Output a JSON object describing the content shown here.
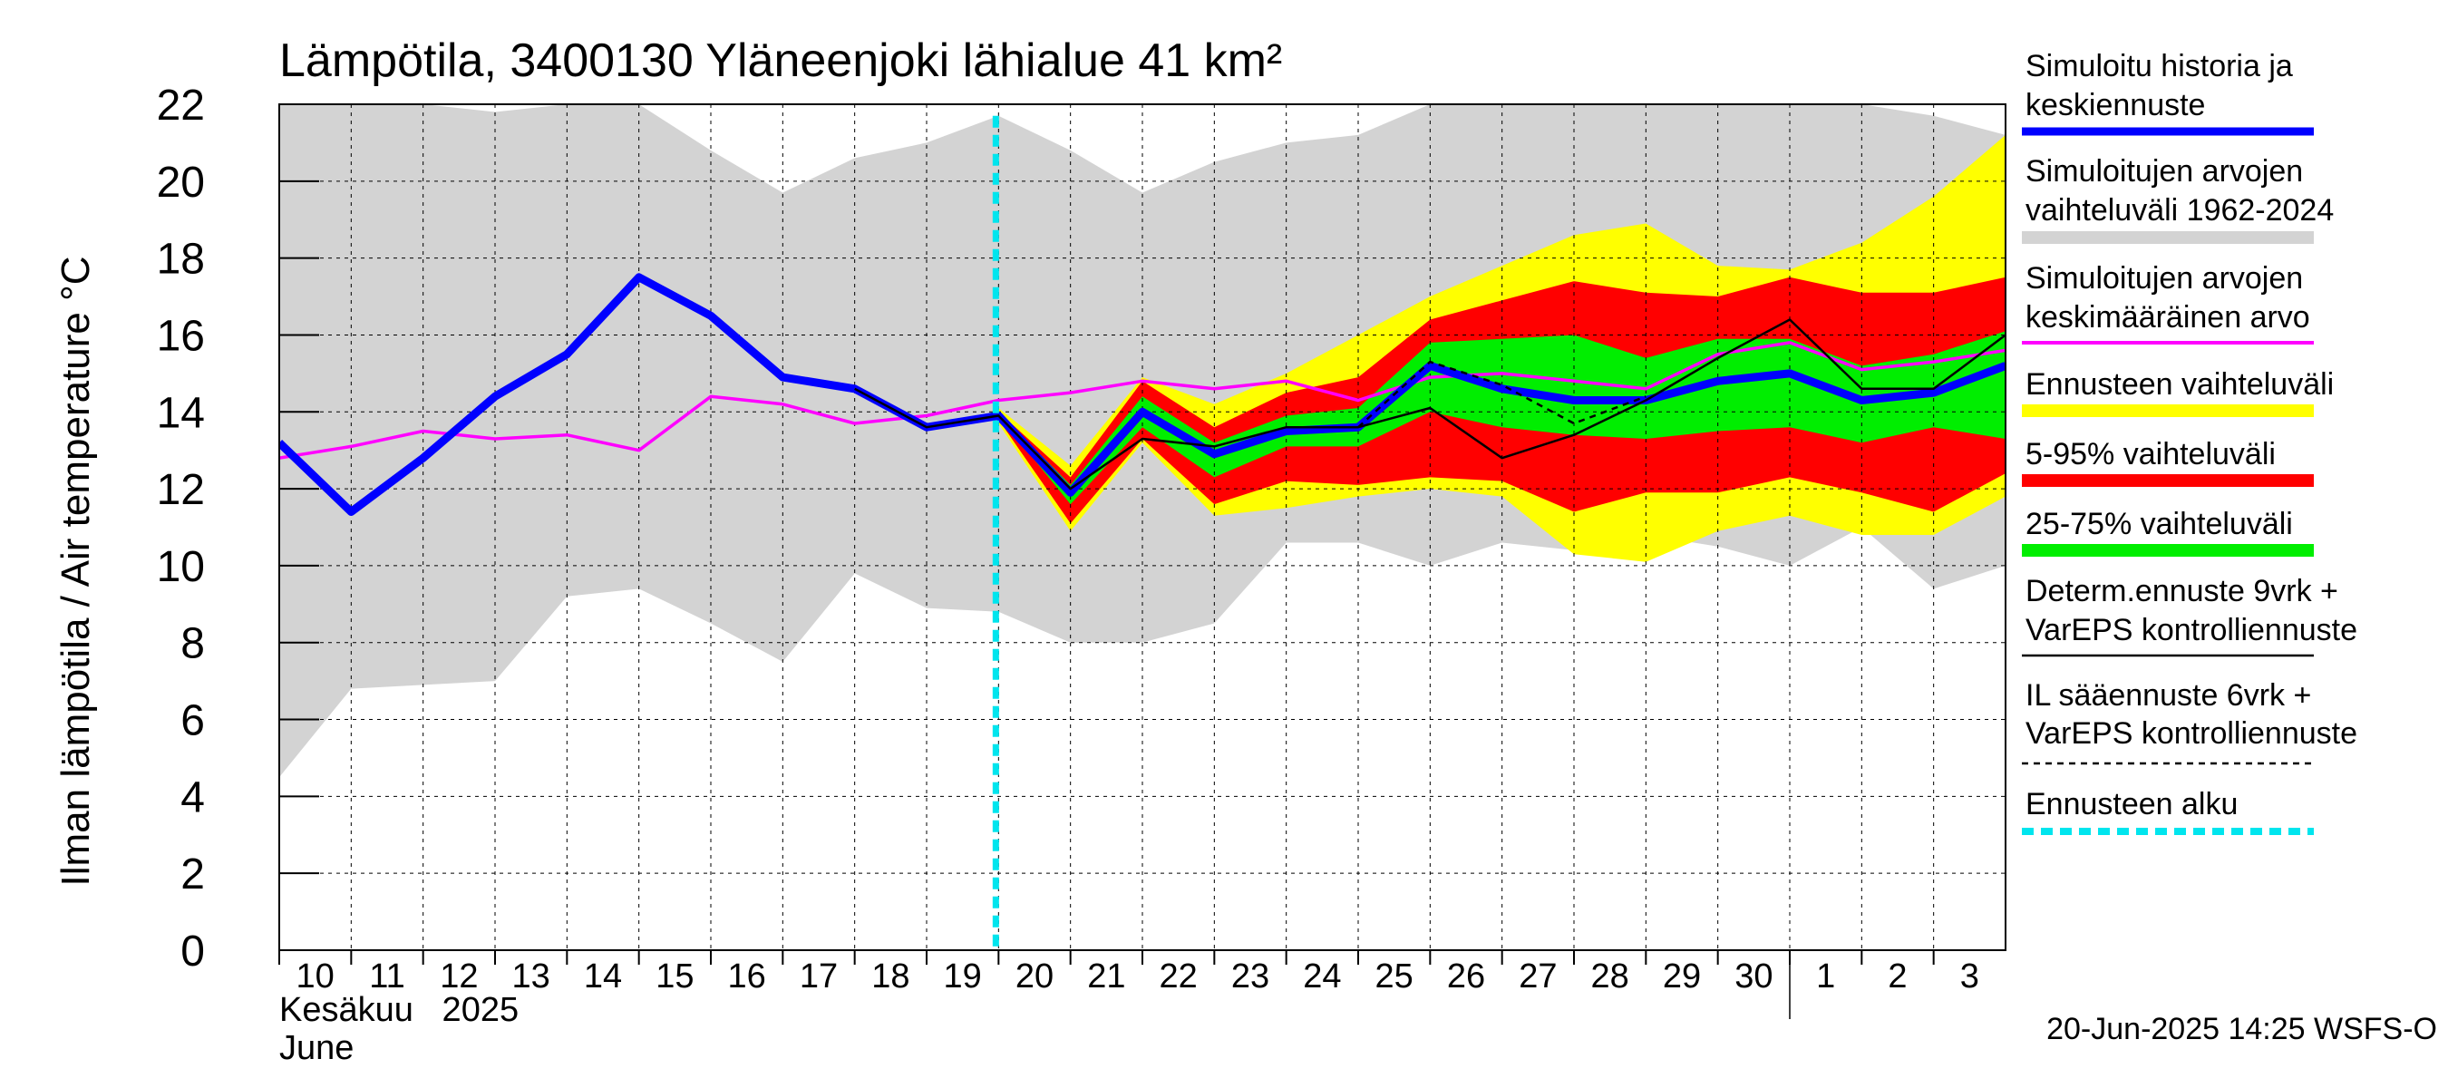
{
  "chart_data": {
    "type": "area",
    "title": "Lämpötila, 3400130 Yläneenjoki lähialue 41 km²",
    "ylabel": "Ilman lämpötila / Air temperature    °C",
    "ylim": [
      0,
      22
    ],
    "yticks": [
      "0",
      "2",
      "4",
      "6",
      "8",
      "10",
      "12",
      "14",
      "16",
      "18",
      "20",
      "22"
    ],
    "x_tick_labels": [
      "10",
      "11",
      "12",
      "13",
      "14",
      "15",
      "16",
      "17",
      "18",
      "19",
      "20",
      "21",
      "22",
      "23",
      "24",
      "25",
      "26",
      "27",
      "28",
      "29",
      "30",
      "1",
      "2",
      "3"
    ],
    "month_label_fi": "Kesäkuu   2025",
    "month_label_en": "June",
    "footer": "20-Jun-2025 14:25 WSFS-O",
    "forecast_start_day": 20,
    "colors": {
      "history_range": "#d3d3d3",
      "forecast_range": "#ffff00",
      "p5_95": "#ff0000",
      "p25_75": "#00ee00",
      "simulated": "#0000ff",
      "mean": "#ff00ff",
      "deterministic": "#000000",
      "forecast_start": "#00e5ee"
    },
    "history_range": {
      "x": [
        10,
        11,
        12,
        13,
        14,
        15,
        16,
        17,
        18,
        19,
        20,
        21,
        22,
        23,
        24,
        25,
        26,
        27,
        28,
        29,
        30,
        31,
        32,
        33,
        34
      ],
      "upper": [
        22,
        22,
        22,
        21.8,
        22,
        22,
        20.8,
        19.7,
        20.6,
        21,
        21.7,
        20.8,
        19.7,
        20.5,
        21,
        21.2,
        22,
        22,
        22,
        22,
        22,
        22,
        22,
        21.7,
        21.2
      ],
      "lower": [
        4.5,
        6.8,
        6.9,
        7.0,
        9.2,
        9.4,
        8.5,
        7.5,
        9.8,
        8.9,
        8.8,
        8.0,
        8.0,
        8.5,
        10.6,
        10.6,
        10.0,
        10.6,
        10.4,
        10.8,
        10.5,
        10.0,
        11.0,
        9.4,
        10.0
      ]
    },
    "forecast_range": {
      "x": [
        20,
        21,
        22,
        23,
        24,
        25,
        26,
        27,
        28,
        29,
        30,
        31,
        32,
        33,
        34
      ],
      "upper": [
        14.1,
        12.6,
        14.9,
        14.2,
        15.0,
        16.0,
        17.0,
        17.8,
        18.6,
        18.9,
        17.8,
        17.7,
        18.4,
        19.6,
        21.2
      ],
      "lower": [
        13.7,
        10.9,
        13.2,
        11.3,
        11.5,
        11.8,
        12.0,
        11.8,
        10.3,
        10.1,
        10.9,
        11.3,
        10.8,
        10.8,
        11.8
      ]
    },
    "p5_95": {
      "x": [
        20,
        21,
        22,
        23,
        24,
        25,
        26,
        27,
        28,
        29,
        30,
        31,
        32,
        33,
        34
      ],
      "upper": [
        14.0,
        12.3,
        14.8,
        13.6,
        14.5,
        14.9,
        16.4,
        16.9,
        17.4,
        17.1,
        17.0,
        17.5,
        17.1,
        17.1,
        17.5
      ],
      "lower": [
        13.8,
        11.1,
        13.3,
        11.6,
        12.2,
        12.1,
        12.3,
        12.2,
        11.4,
        11.9,
        11.9,
        12.3,
        11.9,
        11.4,
        12.4
      ]
    },
    "p25_75": {
      "x": [
        20,
        21,
        22,
        23,
        24,
        25,
        26,
        27,
        28,
        29,
        30,
        31,
        32,
        33,
        34
      ],
      "upper": [
        14.0,
        12.1,
        14.4,
        13.2,
        13.9,
        14.1,
        15.8,
        15.9,
        16.0,
        15.4,
        15.9,
        15.9,
        15.2,
        15.5,
        16.1
      ],
      "lower": [
        13.9,
        11.6,
        13.6,
        12.3,
        13.1,
        13.1,
        14.0,
        13.6,
        13.4,
        13.3,
        13.5,
        13.6,
        13.2,
        13.6,
        13.3
      ]
    },
    "simulated": {
      "x": [
        10,
        11,
        12,
        13,
        14,
        15,
        16,
        17,
        18,
        19,
        20,
        21,
        22,
        23,
        24,
        25,
        26,
        27,
        28,
        29,
        30,
        31,
        32,
        33,
        34
      ],
      "y": [
        13.2,
        11.4,
        12.8,
        14.4,
        15.5,
        17.5,
        16.5,
        14.9,
        14.6,
        13.6,
        13.9,
        11.9,
        14.0,
        12.9,
        13.5,
        13.6,
        15.2,
        14.6,
        14.3,
        14.3,
        14.8,
        15.0,
        14.3,
        14.5,
        15.2
      ]
    },
    "mean": {
      "x": [
        10,
        11,
        12,
        13,
        14,
        15,
        16,
        17,
        18,
        19,
        20,
        21,
        22,
        23,
        24,
        25,
        26,
        27,
        28,
        29,
        30,
        31,
        32,
        33,
        34
      ],
      "y": [
        12.8,
        13.1,
        13.5,
        13.3,
        13.4,
        13.0,
        14.4,
        14.2,
        13.7,
        13.9,
        14.3,
        14.5,
        14.8,
        14.6,
        14.8,
        14.3,
        14.9,
        15.0,
        14.8,
        14.6,
        15.5,
        15.8,
        15.1,
        15.3,
        15.6
      ]
    },
    "deterministic": {
      "x": [
        18,
        19,
        20,
        21,
        22,
        23,
        24,
        25,
        26,
        27,
        28,
        29,
        30,
        31,
        32,
        33,
        34
      ],
      "y": [
        14.6,
        13.6,
        13.9,
        12.0,
        13.3,
        13.1,
        13.6,
        13.6,
        14.1,
        12.8,
        13.4,
        14.3,
        15.4,
        16.4,
        14.6,
        14.6,
        16.0
      ]
    },
    "il_forecast": {
      "x": [
        25,
        26,
        27,
        28,
        29
      ],
      "y": [
        13.6,
        15.3,
        14.7,
        13.7,
        14.4
      ]
    },
    "legend": [
      {
        "label1": "Simuloitu historia ja",
        "label2": "keskiennuste",
        "style": "thick",
        "color": "#0000ff"
      },
      {
        "label1": "Simuloitujen arvojen",
        "label2": "vaihteluväli 1962-2024",
        "style": "band",
        "color": "#d3d3d3"
      },
      {
        "label1": "Simuloitujen arvojen",
        "label2": "keskimääräinen arvo",
        "style": "thin",
        "color": "#ff00ff"
      },
      {
        "label1": "Ennusteen vaihteluväli",
        "label2": "",
        "style": "band",
        "color": "#ffff00"
      },
      {
        "label1": "5-95% vaihteluväli",
        "label2": "",
        "style": "band",
        "color": "#ff0000"
      },
      {
        "label1": "25-75% vaihteluväli",
        "label2": "",
        "style": "band",
        "color": "#00ee00"
      },
      {
        "label1": "Determ.ennuste 9vrk +",
        "label2": "VarEPS kontrolliennuste",
        "style": "black",
        "color": "#000000"
      },
      {
        "label1": "IL sääennuste 6vrk  +",
        "label2": "  VarEPS kontrolliennuste",
        "style": "dashed",
        "color": "#000000"
      },
      {
        "label1": "Ennusteen alku",
        "label2": "",
        "style": "cyan",
        "color": "#00e5ee"
      }
    ]
  }
}
